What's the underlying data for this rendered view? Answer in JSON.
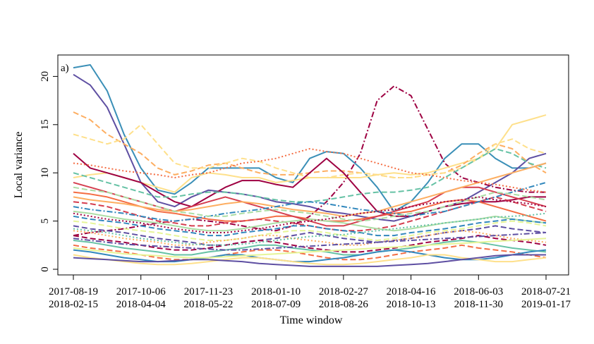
{
  "chart_data": {
    "type": "line",
    "panel_label": "a)",
    "xlabel": "Time window",
    "ylabel": "Local variance",
    "ylim": [
      -0.5,
      22.5
    ],
    "yticks": [
      0,
      5,
      10,
      15,
      20
    ],
    "grid": false,
    "legend": "none",
    "x_tick_labels": [
      {
        "line1": "2017-08-19",
        "line2": "2018-02-15"
      },
      {
        "line1": "2017-10-06",
        "line2": "2018-04-04"
      },
      {
        "line1": "2017-11-23",
        "line2": "2018-05-22"
      },
      {
        "line1": "2018-01-10",
        "line2": "2018-07-09"
      },
      {
        "line1": "2018-02-27",
        "line2": "2018-08-26"
      },
      {
        "line1": "2018-04-16",
        "line2": "2018-10-13"
      },
      {
        "line1": "2018-06-03",
        "line2": "2018-11-30"
      },
      {
        "line1": "2018-07-21",
        "line2": "2019-01-17"
      }
    ],
    "x": [
      0,
      1,
      2,
      3,
      4,
      5,
      6,
      7,
      8,
      9,
      10,
      11,
      12,
      13,
      14,
      15,
      16,
      17,
      18,
      19,
      20,
      21,
      22,
      23,
      24,
      25,
      26,
      27,
      28
    ],
    "series": [
      {
        "color": "#3a8fb7",
        "style": "solid",
        "values": [
          20.9,
          21.2,
          18.5,
          14,
          10.5,
          8.2,
          7.8,
          9,
          10.5,
          10.5,
          10.5,
          10.5,
          9.5,
          9,
          11.5,
          12.2,
          12,
          10.5,
          8.5,
          6,
          7,
          9,
          11.5,
          13,
          13,
          11.5,
          10.5,
          10.5,
          11
        ]
      },
      {
        "color": "#5e4fa2",
        "style": "solid",
        "values": [
          20.2,
          19.1,
          16.8,
          13,
          9,
          7,
          6.5,
          7.5,
          8.2,
          8,
          7.8,
          7.5,
          7,
          6.8,
          6.5,
          6,
          5.8,
          5.5,
          5.2,
          5,
          5.5,
          6,
          6.5,
          7,
          8,
          9,
          10,
          11.5,
          12
        ]
      },
      {
        "color": "#9e0142",
        "style": "dashdot",
        "values": [
          3.5,
          3.8,
          4,
          4.2,
          4.5,
          4.8,
          5,
          5.2,
          5,
          4.8,
          4.5,
          4.2,
          4,
          4.5,
          5.5,
          7,
          9,
          12,
          17.5,
          19,
          18,
          14.5,
          11,
          9.5,
          9,
          8.5,
          8.2,
          8,
          8
        ]
      },
      {
        "color": "#fee08b",
        "style": "solid",
        "values": [
          9.5,
          9.8,
          10,
          9.5,
          9,
          8.5,
          8,
          9.5,
          10,
          9.8,
          9.5,
          9.5,
          9,
          9.2,
          9.5,
          9.5,
          9.5,
          9.5,
          9.8,
          10,
          9.8,
          10,
          10.5,
          11,
          11.5,
          12.5,
          15,
          15.5,
          16
        ]
      },
      {
        "color": "#fdae61",
        "style": "dashed",
        "values": [
          16.3,
          15.5,
          14,
          13,
          12,
          10.5,
          9.8,
          10.2,
          10.8,
          11,
          10.5,
          10,
          9.8,
          9.8,
          10,
          10.2,
          10.2,
          10,
          9.8,
          9.5,
          9.5,
          9.8,
          10,
          10.8,
          12,
          13,
          12.5,
          11,
          10
        ]
      },
      {
        "color": "#fee08b",
        "style": "dashed",
        "values": [
          14,
          13.5,
          13,
          13.5,
          15,
          13,
          11,
          10.5,
          10.5,
          11,
          11.5,
          11.2,
          10.5,
          10,
          9.5,
          9.5,
          9.8,
          10,
          9.8,
          9.5,
          9.5,
          9.8,
          10,
          10.5,
          11.5,
          13,
          13.5,
          12.5,
          12
        ]
      },
      {
        "color": "#9e0142",
        "style": "solid",
        "values": [
          12,
          10.5,
          10,
          9.5,
          9,
          8,
          7,
          6.5,
          7.5,
          8.5,
          9.2,
          9.2,
          8.8,
          8.5,
          10,
          11.5,
          10,
          8,
          6,
          5.5,
          5.5,
          6,
          6.5,
          6.8,
          7,
          7,
          7.2,
          7.5,
          7.5
        ]
      },
      {
        "color": "#66c2a5",
        "style": "dashed",
        "values": [
          10,
          9.5,
          9,
          8.5,
          8,
          7.5,
          7.5,
          7.8,
          8,
          8,
          7.8,
          7.5,
          7.2,
          7,
          7,
          7.2,
          7.5,
          7.8,
          8,
          8,
          8.2,
          8.5,
          9.5,
          10.5,
          11.5,
          12.5,
          12,
          11,
          10.5
        ]
      },
      {
        "color": "#f46d43",
        "style": "solid",
        "values": [
          8,
          7.8,
          7.5,
          7,
          6.5,
          6,
          5.8,
          5.5,
          5.2,
          5,
          5,
          5.2,
          5.5,
          5.5,
          5.2,
          5,
          5,
          5.2,
          5.5,
          5.8,
          6,
          6.5,
          7,
          7.2,
          7,
          6.5,
          6,
          5.5,
          5
        ]
      },
      {
        "color": "#d53e4f",
        "style": "dashed",
        "values": [
          7,
          6.8,
          6.5,
          6,
          5.5,
          5,
          4.8,
          4.5,
          4.5,
          4.8,
          5,
          5.2,
          5,
          4.8,
          4.5,
          4.2,
          4,
          4,
          4.2,
          4.5,
          5,
          5.5,
          6,
          6.5,
          7,
          7.5,
          7,
          6.5,
          6
        ]
      },
      {
        "color": "#abdda4",
        "style": "solid",
        "values": [
          6,
          5.8,
          5.5,
          5.2,
          5,
          4.8,
          4.5,
          4.2,
          4,
          4,
          4.2,
          4.5,
          4.8,
          5,
          5.2,
          5,
          4.8,
          4.5,
          4.2,
          4,
          4.2,
          4.5,
          4.8,
          5,
          5.2,
          5.5,
          5.2,
          5,
          4.8
        ]
      },
      {
        "color": "#3288bd",
        "style": "dashed",
        "values": [
          5.5,
          5.2,
          5,
          4.8,
          4.5,
          4.2,
          4,
          3.8,
          3.5,
          3.5,
          3.8,
          4,
          4.2,
          4.5,
          4.5,
          4.2,
          4,
          3.8,
          3.5,
          3.5,
          3.8,
          4,
          4.2,
          4.5,
          4.8,
          5,
          5.2,
          5,
          4.8
        ]
      },
      {
        "color": "#e6f598",
        "style": "dashed",
        "values": [
          5,
          4.8,
          4.5,
          4.2,
          4,
          3.8,
          3.5,
          3.2,
          3,
          3,
          3.2,
          3.5,
          3.8,
          4,
          4,
          3.8,
          3.5,
          3.2,
          3,
          3.2,
          3.5,
          3.8,
          4,
          4.2,
          4.5,
          4.8,
          5,
          4.8,
          4.5
        ]
      },
      {
        "color": "#5e4fa2",
        "style": "dashed",
        "values": [
          4.5,
          4.2,
          4,
          3.8,
          3.5,
          3.2,
          3,
          2.8,
          2.5,
          2.5,
          2.8,
          3,
          3.2,
          3.5,
          3.8,
          3.5,
          3.2,
          3,
          2.8,
          3,
          3.2,
          3.5,
          3.8,
          4,
          4.2,
          4.5,
          4.2,
          4,
          3.8
        ]
      },
      {
        "color": "#fdae61",
        "style": "dotted",
        "values": [
          4,
          3.8,
          3.5,
          3.2,
          3,
          2.8,
          2.5,
          2.5,
          2.8,
          3,
          3.2,
          3.5,
          3.5,
          3.2,
          3,
          2.8,
          2.5,
          2.5,
          2.8,
          3,
          3.2,
          3.5,
          3.8,
          4,
          3.8,
          3.5,
          3.2,
          3,
          2.8
        ]
      },
      {
        "color": "#9e0142",
        "style": "dashed",
        "values": [
          3.5,
          3.2,
          3,
          2.8,
          2.5,
          2.2,
          2,
          2,
          2.2,
          2.5,
          2.8,
          3,
          2.8,
          2.5,
          2.2,
          2,
          1.8,
          1.8,
          2,
          2.2,
          2.5,
          2.8,
          3,
          3.2,
          3.5,
          3.2,
          3,
          2.8,
          2.5
        ]
      },
      {
        "color": "#66c2a5",
        "style": "solid",
        "values": [
          3,
          2.8,
          2.5,
          2.2,
          2,
          1.8,
          1.5,
          1.5,
          1.8,
          2,
          2.2,
          2.5,
          2.5,
          2.2,
          2,
          1.8,
          1.5,
          1.5,
          1.8,
          2,
          2.2,
          2.5,
          2.8,
          3,
          2.8,
          2.5,
          2.2,
          2,
          1.8
        ]
      },
      {
        "color": "#f46d43",
        "style": "dashed",
        "values": [
          2.5,
          2.2,
          2,
          1.8,
          1.5,
          1.2,
          1,
          1,
          1.2,
          1.5,
          1.8,
          2,
          2,
          1.8,
          1.5,
          1.2,
          1,
          1,
          1.2,
          1.5,
          1.8,
          2,
          2.2,
          2.5,
          2.2,
          2,
          1.8,
          1.5,
          1.2
        ]
      },
      {
        "color": "#3288bd",
        "style": "solid",
        "values": [
          2,
          1.8,
          1.5,
          1.2,
          1,
          0.8,
          0.8,
          1,
          1.2,
          1.5,
          1.5,
          1.2,
          1,
          0.8,
          0.8,
          1,
          1.2,
          1.5,
          1.8,
          2,
          1.8,
          1.5,
          1.2,
          1,
          1,
          1.2,
          1.5,
          1.8,
          2
        ]
      },
      {
        "color": "#fee08b",
        "style": "solid",
        "values": [
          1.5,
          1.2,
          1,
          0.8,
          0.6,
          0.5,
          0.5,
          0.6,
          0.8,
          1,
          1.2,
          1.2,
          1,
          0.8,
          0.6,
          0.5,
          0.5,
          0.6,
          0.8,
          1,
          1.2,
          1.5,
          1.5,
          1.2,
          1,
          0.8,
          0.8,
          1,
          1.2
        ]
      },
      {
        "color": "#5e4fa2",
        "style": "solid",
        "values": [
          1.2,
          1.1,
          1,
          0.9,
          0.8,
          0.8,
          0.9,
          1,
          1,
          0.9,
          0.8,
          0.6,
          0.5,
          0.4,
          0.3,
          0.3,
          0.3,
          0.3,
          0.3,
          0.4,
          0.5,
          0.6,
          0.8,
          1,
          1.2,
          1.4,
          1.5,
          1.5,
          1.5
        ]
      },
      {
        "color": "#d53e4f",
        "style": "solid",
        "values": [
          9,
          8.5,
          8,
          7.5,
          7,
          6.5,
          6,
          6.5,
          7,
          7.5,
          7,
          6.5,
          6,
          5.5,
          5,
          4.5,
          4.5,
          5,
          5.5,
          6,
          6.5,
          7,
          8,
          8.5,
          8.5,
          8,
          7.5,
          7,
          6.5
        ]
      },
      {
        "color": "#fdae61",
        "style": "solid",
        "values": [
          7.5,
          7.2,
          7,
          6.8,
          6.5,
          6.2,
          6,
          6.2,
          6.5,
          6.8,
          7,
          6.8,
          6.5,
          6.2,
          6,
          5.8,
          5.5,
          5.8,
          6,
          6.5,
          7,
          7.5,
          8,
          8.5,
          9,
          9.5,
          10,
          10.5,
          11
        ]
      },
      {
        "color": "#3288bd",
        "style": "dashdot",
        "values": [
          6.5,
          6.2,
          6,
          5.8,
          5.5,
          5.2,
          5,
          5.2,
          5.5,
          5.8,
          6,
          6.2,
          6.5,
          6.8,
          7,
          6.8,
          6.5,
          6.2,
          6,
          5.8,
          5.5,
          5.8,
          6,
          6.5,
          7,
          7.5,
          8,
          8.5,
          9
        ]
      },
      {
        "color": "#abdda4",
        "style": "dashed",
        "values": [
          8.5,
          8.2,
          8,
          7.5,
          7,
          6.5,
          6,
          5.8,
          5.5,
          5.5,
          5.8,
          6,
          6.2,
          6,
          5.8,
          5.5,
          5.2,
          5,
          5.2,
          5.5,
          5.8,
          6,
          6.5,
          7,
          7.5,
          8,
          7.8,
          7.5,
          7.2
        ]
      },
      {
        "color": "#9e0142",
        "style": "dotted",
        "values": [
          5.8,
          5.5,
          5.2,
          5,
          4.8,
          4.5,
          4.2,
          4,
          3.8,
          3.8,
          4,
          4.2,
          4.5,
          4.8,
          5,
          5.2,
          5.5,
          5.8,
          6,
          6.2,
          6.5,
          6.8,
          7,
          7.2,
          7.5,
          7.2,
          7,
          6.8,
          6.5
        ]
      },
      {
        "color": "#f46d43",
        "style": "dotted",
        "values": [
          11,
          10.8,
          10.5,
          10.2,
          10,
          9.8,
          9.5,
          9.8,
          10,
          10.5,
          11,
          11.2,
          11.5,
          12,
          12.5,
          12.2,
          12,
          11.5,
          11,
          10.5,
          10,
          9.8,
          9.5,
          9.2,
          9,
          8.8,
          8.5,
          8.2,
          8
        ]
      },
      {
        "color": "#66c2a5",
        "style": "dotted",
        "values": [
          4.2,
          4,
          3.8,
          3.5,
          3.2,
          3,
          2.8,
          2.6,
          2.5,
          2.5,
          2.6,
          2.8,
          3,
          3.2,
          3.4,
          3.5,
          3.6,
          3.8,
          4,
          4.2,
          4.4,
          4.6,
          4.8,
          5,
          5.2,
          5.4,
          5.5,
          5.6,
          5.8
        ]
      },
      {
        "color": "#5e4fa2",
        "style": "dashdot",
        "values": [
          3.2,
          3,
          2.8,
          2.6,
          2.5,
          2.4,
          2.3,
          2.2,
          2.1,
          2,
          2,
          2.1,
          2.2,
          2.3,
          2.4,
          2.5,
          2.6,
          2.7,
          2.8,
          2.9,
          3,
          3.1,
          3.2,
          3.3,
          3.4,
          3.5,
          3.6,
          3.7,
          3.8
        ]
      },
      {
        "color": "#e6f598",
        "style": "solid",
        "values": [
          2.2,
          2,
          1.8,
          1.6,
          1.5,
          1.4,
          1.3,
          1.2,
          1.2,
          1.3,
          1.4,
          1.5,
          1.6,
          1.7,
          1.8,
          1.9,
          2,
          2.1,
          2.2,
          2.3,
          2.4,
          2.5,
          2.6,
          2.7,
          2.8,
          2.9,
          3,
          3.1,
          3.2
        ]
      }
    ]
  }
}
